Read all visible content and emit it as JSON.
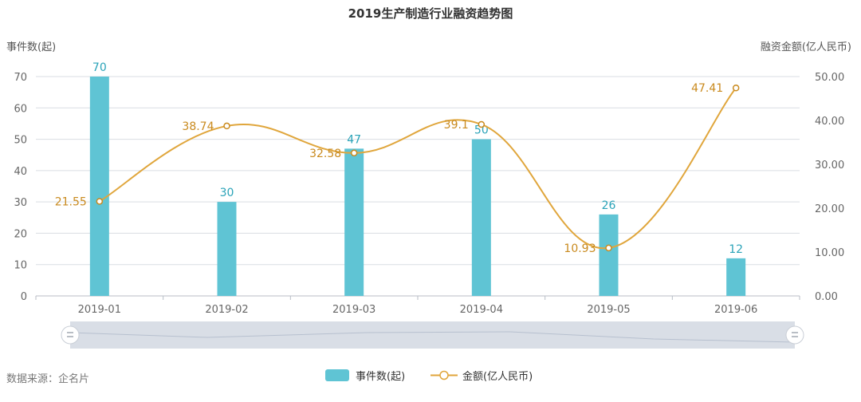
{
  "colors": {
    "bar": "#5fc4d4",
    "line": "#e0a63c",
    "line_label": "#c98a1e",
    "bar_label": "#2aa3b8",
    "grid": "#d9dde3",
    "axis_text": "#666666"
  },
  "title": "2019生产制造行业融资趋势图",
  "left_axis_title": "事件数(起)",
  "right_axis_title": "融资金额(亿人民币)",
  "source": "数据来源：企名片",
  "legend": {
    "bar": "事件数(起)",
    "line": "金额(亿人民币)"
  },
  "chart_data": {
    "type": "bar",
    "title": "2019生产制造行业融资趋势图",
    "categories": [
      "2019-01",
      "2019-02",
      "2019-03",
      "2019-04",
      "2019-05",
      "2019-06"
    ],
    "series": [
      {
        "name": "事件数(起)",
        "type": "bar",
        "axis": "left",
        "values": [
          70,
          30,
          47,
          50,
          26,
          12
        ],
        "labels": [
          "70",
          "30",
          "47",
          "50",
          "26",
          "12"
        ]
      },
      {
        "name": "金额(亿人民币)",
        "type": "line",
        "axis": "right",
        "smooth": true,
        "values": [
          21.55,
          38.74,
          32.58,
          39.1,
          10.93,
          47.41
        ],
        "labels": [
          "21.55",
          "38.74",
          "32.58",
          "39.1",
          "10.93",
          "47.41"
        ]
      }
    ],
    "y_left": {
      "label": "事件数(起)",
      "min": 0,
      "max": 70,
      "ticks": [
        "0",
        "10",
        "20",
        "30",
        "40",
        "50",
        "60",
        "70"
      ]
    },
    "y_right": {
      "label": "融资金额(亿人民币)",
      "min": 0,
      "max": 50,
      "ticks": [
        "0.00",
        "10.00",
        "20.00",
        "30.00",
        "40.00",
        "50.00"
      ]
    },
    "grid": true,
    "legend_position": "bottom"
  }
}
